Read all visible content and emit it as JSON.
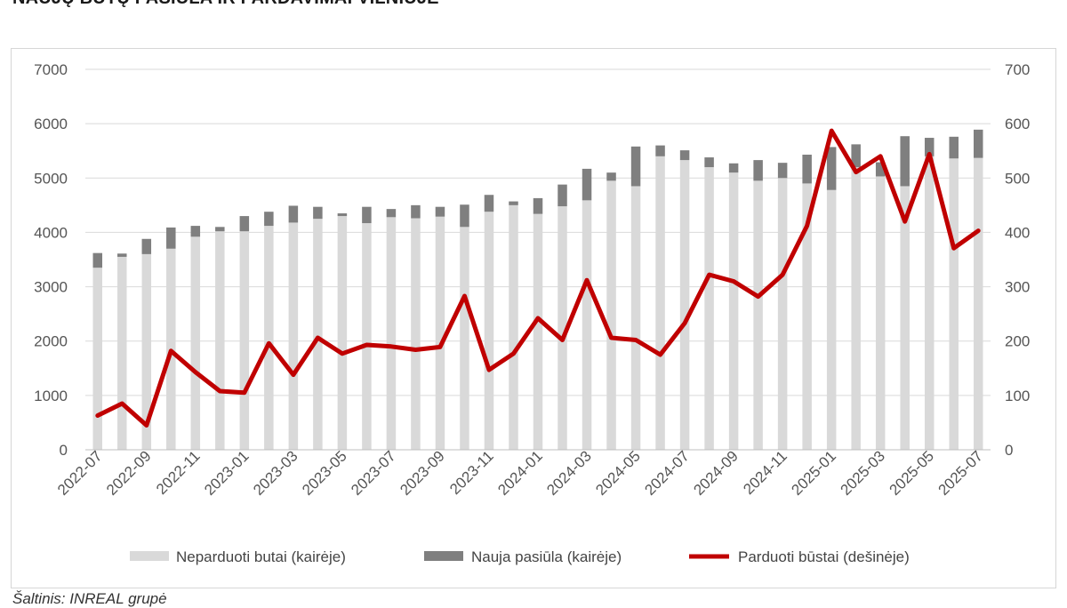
{
  "title": "NAUJŲ BŪTŲ PASIŪLA IR PARDAVIMAI VILNIUJE",
  "source": "Šaltinis: INREAL grupė",
  "colors": {
    "unsold": "#d9d9d9",
    "new_supply": "#7f7f7f",
    "sold": "#c00000",
    "grid": "#d9d9d9"
  },
  "chart_data": {
    "type": "bar",
    "title": "NAUJŲ BŪTŲ PASIŪLA IR PARDAVIMAI VILNIUJE",
    "stacked": true,
    "grid": true,
    "legend_position": "bottom",
    "ylim_left": [
      0,
      7000
    ],
    "ylim_right": [
      0,
      700
    ],
    "yticks_left": [
      "0",
      "1000",
      "2000",
      "3000",
      "4000",
      "5000",
      "6000",
      "7000"
    ],
    "yticks_right": [
      "0",
      "100",
      "200",
      "300",
      "400",
      "500",
      "600",
      "700"
    ],
    "x_tick_labels": [
      "2022-07",
      "2022-09",
      "2022-11",
      "2023-01",
      "2023-03",
      "2023-05",
      "2023-07",
      "2023-09",
      "2023-11",
      "2024-01",
      "2024-03",
      "2024-05",
      "2024-07",
      "2024-09",
      "2024-11",
      "2025-01",
      "2025-03",
      "2025-05",
      "2025-07"
    ],
    "categories": [
      "2022-07",
      "2022-08",
      "2022-09",
      "2022-10",
      "2022-11",
      "2022-12",
      "2023-01",
      "2023-02",
      "2023-03",
      "2023-04",
      "2023-05",
      "2023-06",
      "2023-07",
      "2023-08",
      "2023-09",
      "2023-10",
      "2023-11",
      "2023-12",
      "2024-01",
      "2024-02",
      "2024-03",
      "2024-04",
      "2024-05",
      "2024-06",
      "2024-07",
      "2024-08",
      "2024-09",
      "2024-10",
      "2024-11",
      "2024-12",
      "2025-01",
      "2025-02",
      "2025-03",
      "2025-04",
      "2025-05",
      "2025-06",
      "2025-07"
    ],
    "series": [
      {
        "name": "Neparduoti butai (kairėje)",
        "axis": "left",
        "type": "bar",
        "values": [
          3350,
          3550,
          3600,
          3700,
          3920,
          4020,
          4020,
          4120,
          4180,
          4250,
          4300,
          4170,
          4280,
          4260,
          4290,
          4100,
          4380,
          4500,
          4340,
          4480,
          4590,
          4950,
          4850,
          5400,
          5330,
          5200,
          5100,
          4950,
          5000,
          4900,
          4780,
          5200,
          5030,
          4850,
          5400,
          5360,
          5370
        ]
      },
      {
        "name": "Nauja pasiūla (kairėje)",
        "axis": "left",
        "type": "bar",
        "values": [
          270,
          60,
          280,
          390,
          200,
          80,
          280,
          260,
          310,
          220,
          50,
          300,
          150,
          240,
          180,
          410,
          310,
          70,
          290,
          400,
          580,
          150,
          730,
          200,
          180,
          180,
          170,
          380,
          280,
          530,
          790,
          420,
          260,
          920,
          340,
          400,
          520
        ]
      },
      {
        "name": "Parduoti būstai (dešinėje)",
        "axis": "right",
        "type": "line",
        "values": [
          63,
          85,
          45,
          182,
          143,
          108,
          105,
          196,
          138,
          206,
          177,
          193,
          190,
          184,
          189,
          283,
          147,
          177,
          242,
          202,
          312,
          206,
          202,
          175,
          233,
          322,
          310,
          282,
          322,
          412,
          587,
          511,
          540,
          420,
          544,
          371,
          403
        ]
      }
    ],
    "legend": [
      "Neparduoti butai (kairėje)",
      "Nauja pasiūla (kairėje)",
      "Parduoti būstai (dešinėje)"
    ]
  }
}
